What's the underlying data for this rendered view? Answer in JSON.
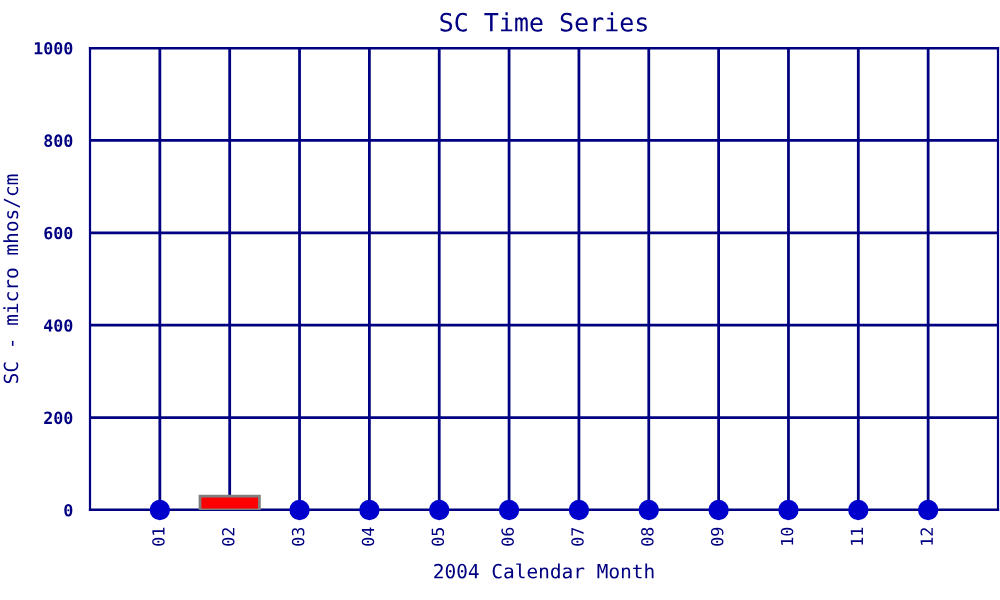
{
  "chart_data": {
    "type": "scatter",
    "title": "SC Time Series",
    "xlabel": "2004 Calendar Month",
    "ylabel": "SC - micro mhos/cm",
    "categories": [
      "01",
      "02",
      "03",
      "04",
      "05",
      "06",
      "07",
      "08",
      "09",
      "10",
      "11",
      "12"
    ],
    "series": [
      {
        "type": "bar",
        "color": "#ff0000",
        "values": [
          null,
          30,
          null,
          null,
          null,
          null,
          null,
          null,
          null,
          null,
          null,
          null
        ]
      },
      {
        "color": "#0000cc",
        "values": [
          0,
          null,
          0,
          0,
          0,
          0,
          0,
          0,
          0,
          0,
          0,
          0
        ]
      }
    ],
    "ylim": [
      0,
      1000
    ],
    "yticks": [
      0,
      200,
      400,
      600,
      800,
      1000
    ],
    "grid": true,
    "marker": "circle",
    "legend": false
  }
}
